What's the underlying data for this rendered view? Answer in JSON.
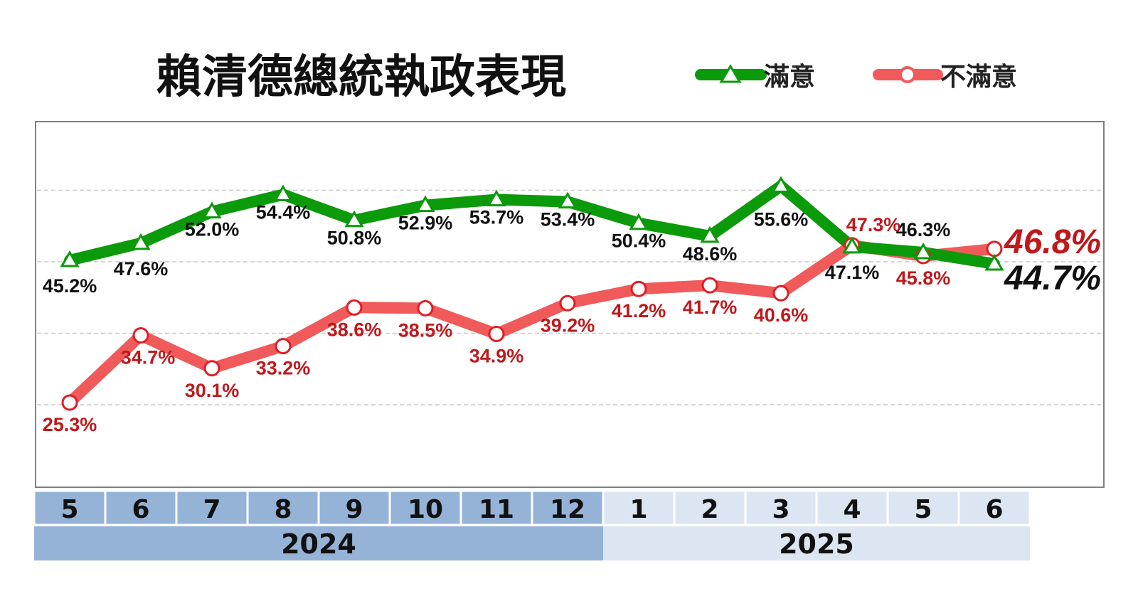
{
  "chart_data": {
    "type": "line",
    "title": "賴清德總統執政表現",
    "categories": [
      "5",
      "6",
      "7",
      "8",
      "9",
      "10",
      "11",
      "12",
      "1",
      "2",
      "3",
      "4",
      "5",
      "6"
    ],
    "years": [
      {
        "label": "2024",
        "span": [
          0,
          7
        ]
      },
      {
        "label": "2025",
        "span": [
          8,
          13
        ]
      }
    ],
    "series": [
      {
        "name": "滿意",
        "color": "#0a9a0a",
        "marker": "triangle",
        "values": [
          45.2,
          47.6,
          52.0,
          54.4,
          50.8,
          52.9,
          53.7,
          53.4,
          50.4,
          48.6,
          55.6,
          47.1,
          46.3,
          44.7
        ],
        "labels": [
          "45.2%",
          "47.6%",
          "52.0%",
          "54.4%",
          "50.8%",
          "52.9%",
          "53.7%",
          "53.4%",
          "50.4%",
          "48.6%",
          "55.6%",
          "47.1%",
          "46.3%",
          "44.7%"
        ]
      },
      {
        "name": "不滿意",
        "color": "#f05a5a",
        "marker": "circle",
        "values": [
          25.3,
          34.7,
          30.1,
          33.2,
          38.6,
          38.5,
          34.9,
          39.2,
          41.2,
          41.7,
          40.6,
          47.3,
          45.8,
          46.8
        ],
        "labels": [
          "25.3%",
          "34.7%",
          "30.1%",
          "33.2%",
          "38.6%",
          "38.5%",
          "34.9%",
          "39.2%",
          "41.2%",
          "41.7%",
          "40.6%",
          "47.3%",
          "45.8%",
          "46.8%"
        ]
      }
    ],
    "ylim": [
      15,
      65
    ],
    "gridlines": [
      25,
      35,
      45,
      55
    ],
    "grid": true,
    "legend": "top-right"
  },
  "colors": {
    "satisfied_label": "#111111",
    "dissatisfied_label": "#c0181c",
    "month_2024_bg": "#95b3d7",
    "month_2025_bg": "#dce6f2"
  }
}
